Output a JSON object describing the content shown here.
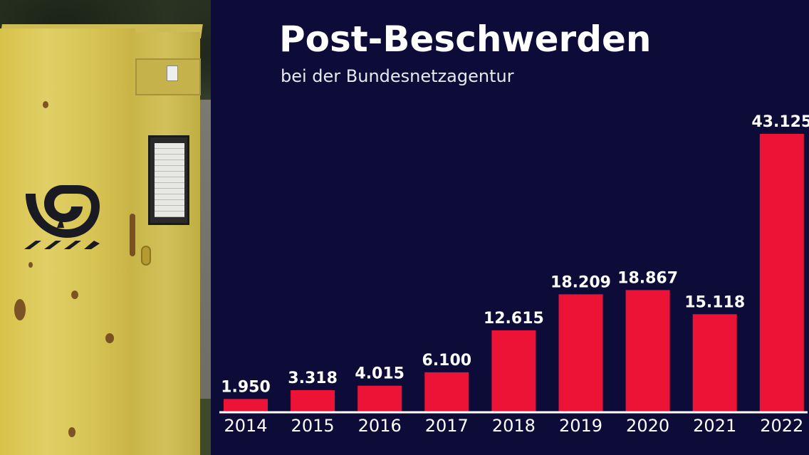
{
  "header": {
    "title": "Post-Beschwerden",
    "subtitle": "bei der Bundesnetzagentur"
  },
  "colors": {
    "background": "#0d0b38",
    "bar": "#ec1337",
    "baseline": "#ffffff",
    "text": "#ffffff"
  },
  "chart_data": {
    "type": "bar",
    "title": "Post-Beschwerden",
    "subtitle": "bei der Bundesnetzagentur",
    "categories": [
      "2014",
      "2015",
      "2016",
      "2017",
      "2018",
      "2019",
      "2020",
      "2021",
      "2022"
    ],
    "values": [
      1950,
      3318,
      4015,
      6100,
      12615,
      18209,
      18867,
      15118,
      43125
    ],
    "value_labels": [
      "1.950",
      "3.318",
      "4.015",
      "6.100",
      "12.615",
      "18.209",
      "18.867",
      "15.118",
      "43.125"
    ],
    "xlabel": "",
    "ylabel": "",
    "ylim": [
      0,
      43125
    ],
    "grid": false,
    "legend": "none"
  }
}
